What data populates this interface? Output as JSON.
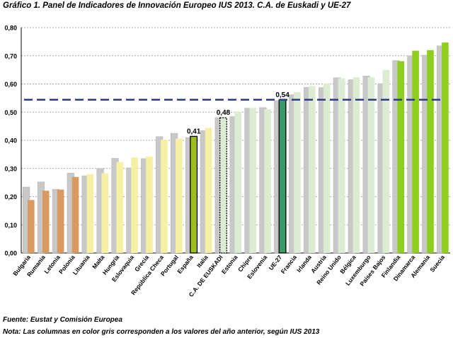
{
  "title": "Gráfico 1. Panel de Indicadores de Innovación Europeo IUS 2013. C.A. de Euskadi y UE-27",
  "footnotes": {
    "source": "Fuente: Eustat y Comisión Europea",
    "note": "Nota: Las columnas en color gris corresponden a los valores del año anterior, según IUS 2013"
  },
  "chart_data": {
    "type": "bar",
    "title": "Gráfico 1. Panel de Indicadores de Innovación Europeo IUS 2013. C.A. de Euskadi y UE-27",
    "xlabel": "",
    "ylabel": "",
    "ylim": [
      0,
      0.8
    ],
    "yticks": [
      0.0,
      0.1,
      0.2,
      0.3,
      0.4,
      0.5,
      0.6,
      0.7,
      0.8
    ],
    "ytick_labels": [
      "0,00",
      "0,10",
      "0,20",
      "0,30",
      "0,40",
      "0,50",
      "0,60",
      "0,70",
      "0,80"
    ],
    "grid": true,
    "categories": [
      "Bulgaria",
      "Rumania",
      "Letonia",
      "Polonia",
      "Lituania",
      "Malta",
      "Hungría",
      "Eslovaquia",
      "Grecia",
      "República Checa",
      "Portugal",
      "España",
      "Italia",
      "C.A. DE EUSKADI",
      "Estonia",
      "Chipre",
      "Eslovenia",
      "UE-27",
      "Francia",
      "Irlanda",
      "Austria",
      "Reino Unido",
      "Bélgica",
      "Luxemburgo",
      "Países Bajos",
      "Finlandia",
      "Dinamarca",
      "Alemania",
      "Suecia"
    ],
    "series": [
      {
        "name": "Año anterior",
        "color": "#c8c8c8",
        "values": [
          0.234,
          0.252,
          0.226,
          0.284,
          0.274,
          0.3,
          0.336,
          0.302,
          0.335,
          0.413,
          0.425,
          0.41,
          0.434,
          0.48,
          0.484,
          0.514,
          0.516,
          0.541,
          0.562,
          0.588,
          0.587,
          0.622,
          0.615,
          0.628,
          0.601,
          0.683,
          0.7,
          0.702,
          0.735
        ]
      },
      {
        "name": "IUS 2013",
        "values": [
          0.188,
          0.221,
          0.225,
          0.27,
          0.28,
          0.283,
          0.323,
          0.339,
          0.343,
          0.402,
          0.406,
          0.414,
          0.444,
          0.48,
          0.502,
          0.515,
          0.51,
          0.544,
          0.571,
          0.593,
          0.602,
          0.62,
          0.624,
          0.624,
          0.65,
          0.681,
          0.718,
          0.72,
          0.747
        ],
        "colors": [
          "#d99a62",
          "#d99a62",
          "#d99a62",
          "#d99a62",
          "#f5f0a4",
          "#f5f0a4",
          "#f5f0a4",
          "#f5f0a4",
          "#f5f0a4",
          "#f5f0a4",
          "#f5f0a4",
          "#9dbe1c",
          "#f5f0a4",
          "#dcecd2",
          "#dcecd2",
          "#dcecd2",
          "#dcecd2",
          "#3a9a6c",
          "#dcecd2",
          "#dcecd2",
          "#dcecd2",
          "#dcecd2",
          "#dcecd2",
          "#dcecd2",
          "#dcecd2",
          "#8ece1e",
          "#8ece1e",
          "#8ece1e",
          "#8ece1e"
        ]
      }
    ],
    "highlighted_categories": [
      "España",
      "C.A. DE EUSKADI",
      "UE-27"
    ],
    "data_labels": [
      {
        "category": "España",
        "text": "0,41"
      },
      {
        "category": "C.A. DE EUSKADI",
        "text": "0,48"
      },
      {
        "category": "UE-27",
        "text": "0,54"
      }
    ],
    "reference_line": {
      "value": 0.544,
      "style": "dashed",
      "color": "#2e3a8c"
    }
  }
}
